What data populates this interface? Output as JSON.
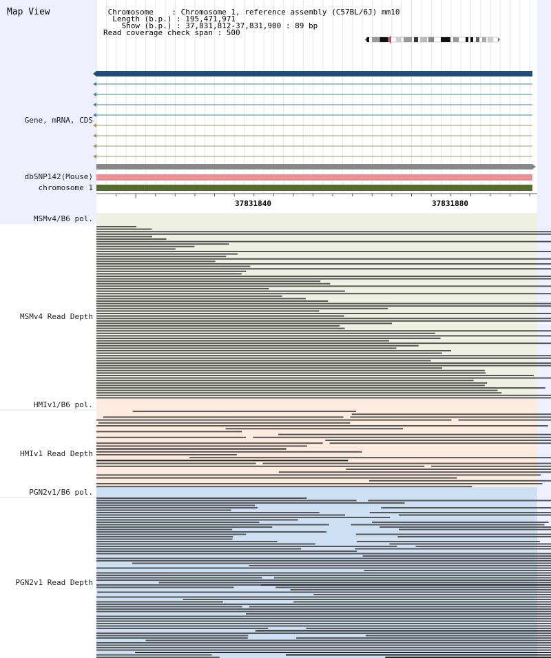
{
  "header": {
    "title": "Map View",
    "info_lines": [
      " Chromosome    : Chromosome 1, reference assembly (C57BL/6J) mm10",
      "  Length (b.p.) : 195,471,971",
      "    Show (b.p.) : 37,831,812-37,831,900 : 89 bp",
      "Read coverage check span : 500"
    ]
  },
  "tracks": {
    "gene_label": "Gene, mRNA, CDS",
    "dbsnp_label": "dbSNP142(Mouse)",
    "chromosome_label": "chromosome 1"
  },
  "ruler": {
    "ticks": [
      "37831840",
      "37831880"
    ]
  },
  "panels": [
    {
      "pol_label": "MSMv4/B6 pol.",
      "depth_label": "MSMv4 Read Depth",
      "bg": "#eef0e2"
    },
    {
      "pol_label": "HMIv1/B6 pol.",
      "depth_label": "HMIv1 Read Depth",
      "bg": "#fdebdf"
    },
    {
      "pol_label": "PGN2v1/B6 pol.",
      "depth_label": "PGN2v1 Read Depth",
      "bg": "#cddff3"
    }
  ],
  "colors": {
    "gene_main": "#1f4e79",
    "mrna_teal": "#3a8a9a",
    "mrna_olive": "#9aa050",
    "gray_bar": "#888888",
    "dbsnp": "#ec8f95",
    "chromosome": "#556b2f",
    "read": "#555555",
    "read_dark": "#222222"
  }
}
